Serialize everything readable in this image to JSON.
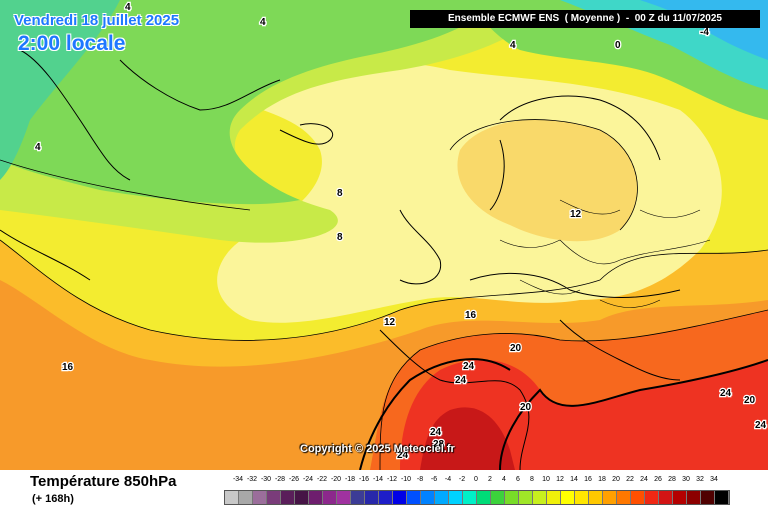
{
  "header": {
    "date": "Vendredi 18 juillet 2025",
    "time": "2:00 locale",
    "model": "Ensemble ECMWF ENS  ( Moyenne )  -  00 Z du 11/07/2025"
  },
  "map": {
    "parameter": "Température 850hPa",
    "lead_time": "(+ 168h)",
    "copyright": "Copyright © 2025 Meteociel.fr",
    "contour_labels": [
      {
        "text": "4",
        "name": "isotherm-label-4"
      },
      {
        "text": "4",
        "name": "isotherm-label-4"
      },
      {
        "text": "4",
        "name": "isotherm-label-4"
      },
      {
        "text": "4",
        "name": "isotherm-label-4"
      },
      {
        "text": "0",
        "name": "isotherm-label-0"
      },
      {
        "text": "-4",
        "name": "isotherm-label-minus4"
      },
      {
        "text": "8",
        "name": "isotherm-label-8"
      },
      {
        "text": "8",
        "name": "isotherm-label-8"
      },
      {
        "text": "12",
        "name": "isotherm-label-12"
      },
      {
        "text": "12",
        "name": "isotherm-label-12"
      },
      {
        "text": "16",
        "name": "isotherm-label-16"
      },
      {
        "text": "16",
        "name": "isotherm-label-16"
      },
      {
        "text": "20",
        "name": "isotherm-label-20"
      },
      {
        "text": "20",
        "name": "isotherm-label-20"
      },
      {
        "text": "20",
        "name": "isotherm-label-20"
      },
      {
        "text": "24",
        "name": "isotherm-label-24"
      },
      {
        "text": "24",
        "name": "isotherm-label-24"
      },
      {
        "text": "24",
        "name": "isotherm-label-24"
      },
      {
        "text": "24",
        "name": "isotherm-label-24"
      },
      {
        "text": "24",
        "name": "isotherm-label-24"
      },
      {
        "text": "24",
        "name": "isotherm-label-24"
      },
      {
        "text": "28",
        "name": "isotherm-label-28"
      }
    ]
  },
  "legend": {
    "ticks": [
      "-34",
      "-32",
      "-30",
      "-28",
      "-26",
      "-24",
      "-22",
      "-20",
      "-18",
      "-16",
      "-14",
      "-12",
      "-10",
      "-8",
      "-6",
      "-4",
      "-2",
      "0",
      "2",
      "4",
      "6",
      "8",
      "10",
      "12",
      "14",
      "16",
      "18",
      "20",
      "22",
      "24",
      "26",
      "28",
      "30",
      "32",
      "34"
    ],
    "colors": [
      "#c8c8c8",
      "#a8a8a8",
      "#9b6e9b",
      "#7a3c7a",
      "#5a1e5a",
      "#461446",
      "#6e1e6e",
      "#8c288c",
      "#a032a0",
      "#3c3c96",
      "#2828aa",
      "#1e1ec8",
      "#0000e6",
      "#0050ff",
      "#0082ff",
      "#00aaff",
      "#00d2ff",
      "#00f0c8",
      "#00dc78",
      "#3cd23c",
      "#78dc28",
      "#a0e628",
      "#c8f01e",
      "#f0f00a",
      "#ffff00",
      "#ffe600",
      "#ffc800",
      "#ffa000",
      "#ff7800",
      "#ff5000",
      "#f02814",
      "#d21414",
      "#b40000",
      "#8c0000",
      "#500000",
      "#000000"
    ]
  }
}
